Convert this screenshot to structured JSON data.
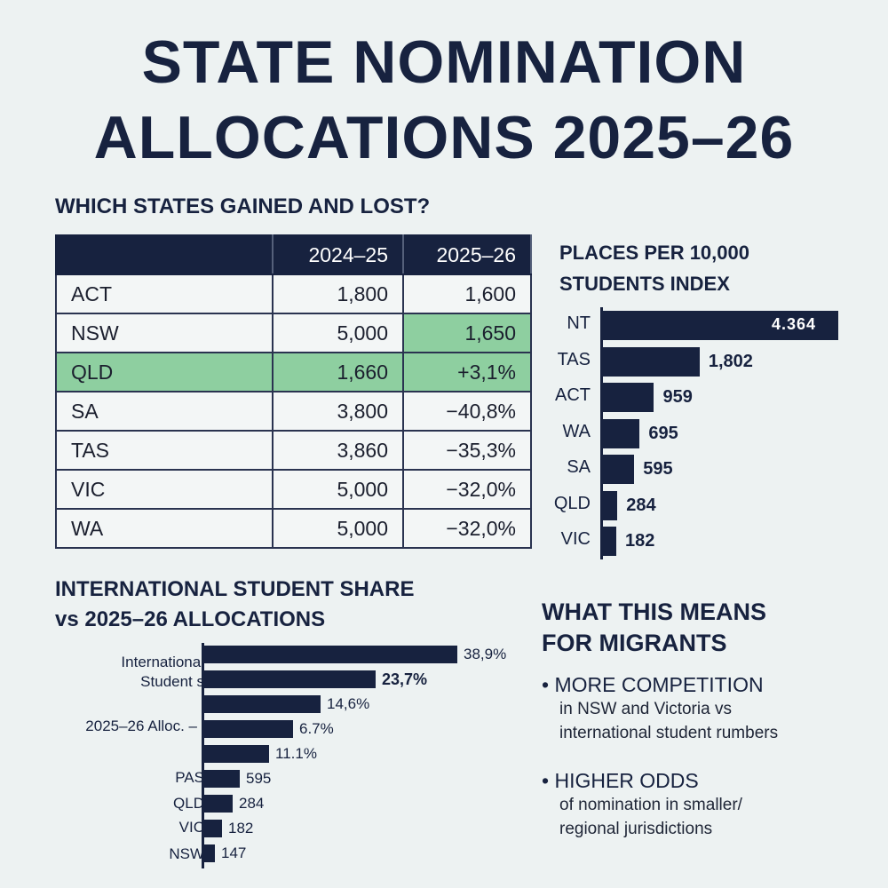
{
  "title": {
    "line1": "STATE NOMINATION",
    "line2": "ALLOCATIONS 2025–26"
  },
  "table_section": {
    "heading": "WHICH STATES GAINED AND LOST?",
    "columns": [
      "",
      "2024–25",
      "2025–26"
    ],
    "rows": [
      {
        "state": "ACT",
        "y2024": "1,800",
        "y2025": "1,600",
        "highlight": "none"
      },
      {
        "state": "NSW",
        "y2024": "5,000",
        "y2025": "1,650",
        "highlight": "last-cell"
      },
      {
        "state": "QLD",
        "y2024": "1,660",
        "y2025": "+3,1%",
        "highlight": "row"
      },
      {
        "state": "SA",
        "y2024": "3,800",
        "y2025": "−40,8%",
        "highlight": "none"
      },
      {
        "state": "TAS",
        "y2024": "3,860",
        "y2025": "−35,3%",
        "highlight": "none"
      },
      {
        "state": "VIC",
        "y2024": "5,000",
        "y2025": "−32,0%",
        "highlight": "none"
      },
      {
        "state": "WA",
        "y2024": "5,000",
        "y2025": "−32,0%",
        "highlight": "none"
      }
    ],
    "highlight_color": "#8ecfa0",
    "header_color": "#17223f"
  },
  "chart_data": [
    {
      "type": "bar",
      "orientation": "horizontal",
      "title": "PLACES PER 10,000 STUDENTS INDEX",
      "title_lines": [
        "PLACES PER 10,000",
        "STUDENTS INDEX"
      ],
      "categories": [
        "NT",
        "TAS",
        "ACT",
        "WA",
        "SA",
        "QLD",
        "VIC"
      ],
      "values": [
        4364,
        1802,
        959,
        695,
        595,
        284,
        182
      ],
      "data_labels": [
        "4.364",
        "1,802",
        "959",
        "695",
        "595",
        "284",
        "182"
      ],
      "bar_color": "#17223f",
      "grid": false
    },
    {
      "type": "bar",
      "orientation": "horizontal",
      "title": "INTERNATIONAL STUDENT SHARE vs 2025–26 ALLOCATIONS",
      "title_lines": [
        "INTERNATIONAL STUDENT SHARE",
        "vs 2025–26 ALLOCATIONS"
      ],
      "axis_labels": [
        "International",
        "Student s",
        "2025–26 Alloc. –",
        "PAS",
        "QLD",
        "VIC",
        "NSW"
      ],
      "values": [
        38.9,
        23.7,
        14.6,
        6.7,
        11.1,
        595,
        284,
        182,
        147
      ],
      "data_labels": [
        "38,9%",
        "23,7%",
        "14,6%",
        "6.7%",
        "11.1%",
        "595",
        "284",
        "182",
        "147"
      ],
      "bar_color": "#17223f",
      "grid": false
    }
  ],
  "migrants": {
    "heading_lines": [
      "WHAT THIS MEANS",
      "FOR MIGRANTS"
    ],
    "points": [
      {
        "title": "MORE COMPETITION",
        "lines": [
          "in NSW and Victoria vs",
          "international student rumbers"
        ]
      },
      {
        "title": "HIGHER ODDS",
        "lines": [
          "of nomination in smaller/",
          "regional jurisdictions"
        ]
      }
    ]
  }
}
